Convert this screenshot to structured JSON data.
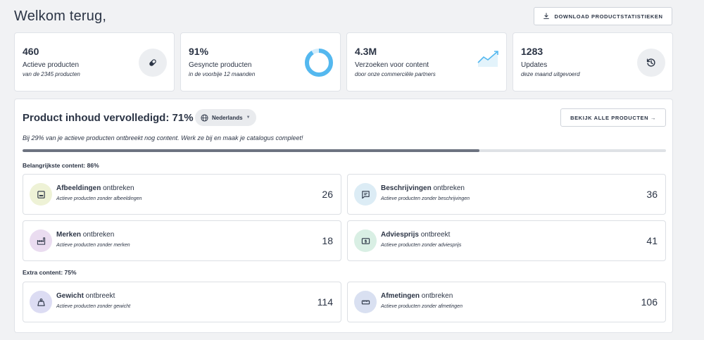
{
  "header": {
    "title": "Welkom terug,",
    "download_label": "DOWNLOAD PRODUCTSTATISTIEKEN"
  },
  "kpis": [
    {
      "value": "460",
      "label": "Actieve producten",
      "sub": "van de 2345 producten",
      "icon": "pill-icon"
    },
    {
      "value": "91%",
      "label": "Gesyncte producten",
      "sub": "in de voorbije 12 maanden",
      "icon": "donut-chart",
      "fraction": 0.91
    },
    {
      "value": "4.3M",
      "label": "Verzoeken voor content",
      "sub": "door onze commerciële partners",
      "icon": "trend-up-icon"
    },
    {
      "value": "1283",
      "label": "Updates",
      "sub": "deze maand uitgevoerd",
      "icon": "history-icon"
    }
  ],
  "content": {
    "title": "Product inhoud vervolledigd: 71%",
    "language": "Nederlands",
    "view_all_label": "BEKIJK ALLE PRODUCTEN →",
    "hint": "Bij 29% van je actieve producten ontbreekt nog content. Werk ze bij en maak je catalogus compleet!",
    "progress_fraction": 0.71,
    "sections": [
      {
        "label": "Belangrijkste content: 86%",
        "tiles": [
          {
            "bold": "Afbeeldingen",
            "rest": " ontbreken",
            "sub": "Actieve producten zonder afbeeldingen",
            "count": "26",
            "icon": "image-icon",
            "color": "#eef2d6"
          },
          {
            "bold": "Beschrijvingen",
            "rest": " ontbreken",
            "sub": "Actieve producten zonder beschrijvingen",
            "count": "36",
            "icon": "message-icon",
            "color": "#dcecf5"
          },
          {
            "bold": "Merken",
            "rest": " ontbreken",
            "sub": "Actieve producten zonder merken",
            "count": "18",
            "icon": "factory-icon",
            "color": "#eadcf0"
          },
          {
            "bold": "Adviesprijs",
            "rest": " ontbreekt",
            "sub": "Actieve producten zonder adviesprijs",
            "count": "41",
            "icon": "price-icon",
            "color": "#d9efe4"
          }
        ]
      },
      {
        "label": "Extra content: 75%",
        "tiles": [
          {
            "bold": "Gewicht",
            "rest": " ontbreekt",
            "sub": "Actieve producten zonder gewicht",
            "count": "114",
            "icon": "weight-icon",
            "color": "#dcdcf3"
          },
          {
            "bold": "Afmetingen",
            "rest": " ontbreken",
            "sub": "Actieve producten zonder afmetingen",
            "count": "106",
            "icon": "ruler-icon",
            "color": "#d9e0f1"
          }
        ]
      }
    ]
  }
}
